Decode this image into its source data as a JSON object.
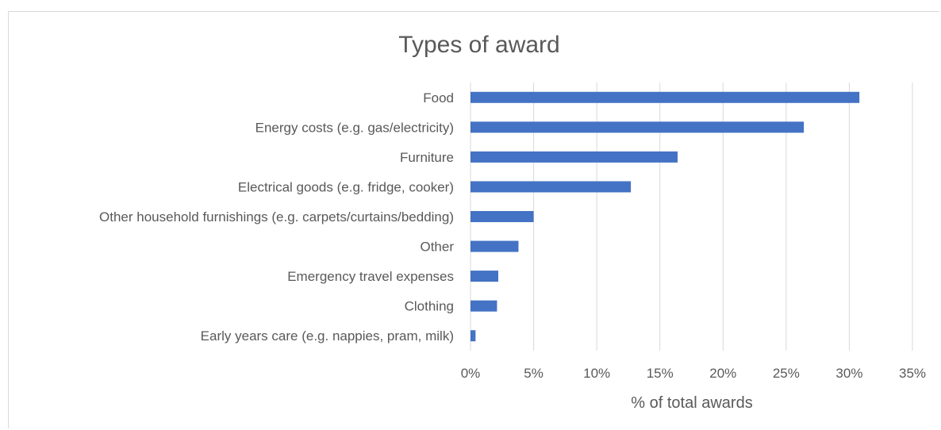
{
  "chart_data": {
    "type": "bar",
    "orientation": "horizontal",
    "title": "Types of award",
    "xlabel": "% of total awards",
    "ylabel": "",
    "xlim": [
      0,
      35
    ],
    "xticks": [
      "0%",
      "5%",
      "10%",
      "15%",
      "20%",
      "25%",
      "30%",
      "35%"
    ],
    "grid": true,
    "legend": "none",
    "bar_color": "#4472c4",
    "categories": [
      "Food",
      "Energy costs (e.g. gas/electricity)",
      "Furniture",
      "Electrical goods (e.g. fridge, cooker)",
      "Other household furnishings (e.g. carpets/curtains/bedding)",
      "Other",
      "Emergency travel expenses",
      "Clothing",
      "Early years care (e.g. nappies, pram, milk)"
    ],
    "values": [
      30.8,
      26.4,
      16.4,
      12.7,
      5.0,
      3.8,
      2.2,
      2.1,
      0.4
    ]
  }
}
